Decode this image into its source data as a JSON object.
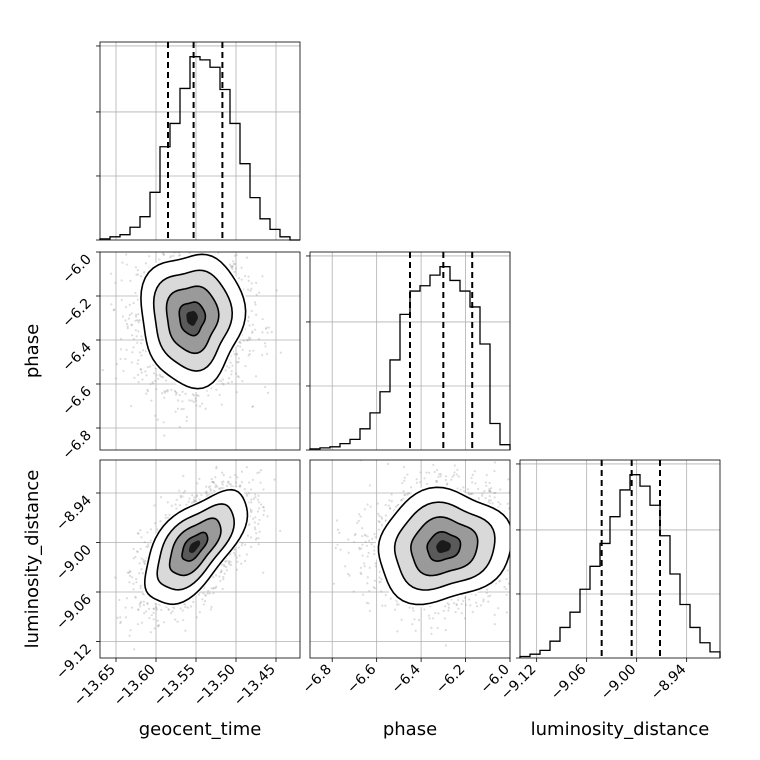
{
  "chart_data": {
    "type": "corner",
    "parameters": [
      "geocent_time",
      "phase",
      "luminosity_distance"
    ],
    "axes": {
      "geocent_time": {
        "label": "geocent_time",
        "range": [
          -13.67,
          -13.42
        ],
        "ticks": [
          -13.65,
          -13.6,
          -13.55,
          -13.5,
          -13.45
        ],
        "tick_labels": [
          "−13.65",
          "−13.60",
          "−13.55",
          "−13.50",
          "−13.45"
        ]
      },
      "phase": {
        "label": "phase",
        "range": [
          -6.9,
          -6.0
        ],
        "ticks": [
          -6.8,
          -6.6,
          -6.4,
          -6.2,
          -6.0
        ],
        "tick_labels": [
          "−6.8",
          "−6.6",
          "−6.4",
          "−6.2",
          "−6.0"
        ]
      },
      "luminosity_distance": {
        "label": "luminosity_distance",
        "range": [
          -9.14,
          -8.9
        ],
        "ticks": [
          -9.12,
          -9.06,
          -9.0,
          -8.94
        ],
        "tick_labels": [
          "−9.12",
          "−9.06",
          "−9.00",
          "−8.94"
        ]
      }
    },
    "marginals": [
      {
        "param": "geocent_time",
        "quantiles": [
          -13.585,
          -13.553,
          -13.517
        ],
        "bin_edges": [
          -13.67,
          -13.6575,
          -13.645,
          -13.6325,
          -13.62,
          -13.6075,
          -13.595,
          -13.5825,
          -13.57,
          -13.5575,
          -13.545,
          -13.5325,
          -13.52,
          -13.5075,
          -13.495,
          -13.4825,
          -13.47,
          -13.4575,
          -13.445,
          -13.4325,
          -13.42
        ],
        "counts": [
          1,
          3,
          5,
          12,
          22,
          45,
          88,
          110,
          143,
          173,
          170,
          163,
          142,
          110,
          72,
          40,
          20,
          10,
          3,
          0
        ]
      },
      {
        "param": "phase",
        "quantiles": [
          -6.45,
          -6.3,
          -6.17
        ],
        "bin_edges": [
          -6.9,
          -6.855,
          -6.81,
          -6.765,
          -6.72,
          -6.675,
          -6.63,
          -6.585,
          -6.54,
          -6.495,
          -6.45,
          -6.405,
          -6.36,
          -6.315,
          -6.27,
          -6.225,
          -6.18,
          -6.135,
          -6.09,
          -6.045,
          -6.0
        ],
        "counts": [
          1,
          2,
          3,
          6,
          10,
          20,
          35,
          55,
          85,
          128,
          150,
          155,
          165,
          173,
          160,
          150,
          135,
          100,
          25,
          5
        ]
      },
      {
        "param": "luminosity_distance",
        "quantiles": [
          -9.042,
          -9.006,
          -8.972
        ],
        "bin_edges": [
          -9.14,
          -9.128,
          -9.116,
          -9.104,
          -9.092,
          -9.08,
          -9.068,
          -9.056,
          -9.044,
          -9.032,
          -9.02,
          -9.008,
          -8.996,
          -8.984,
          -8.972,
          -8.96,
          -8.948,
          -8.936,
          -8.924,
          -8.912,
          -8.9
        ],
        "counts": [
          2,
          5,
          10,
          22,
          40,
          60,
          90,
          120,
          150,
          185,
          220,
          240,
          225,
          200,
          160,
          110,
          70,
          40,
          20,
          8
        ]
      }
    ],
    "pairs": [
      {
        "x": "geocent_time",
        "y": "phase",
        "center": [
          -13.555,
          -6.3
        ],
        "sigma": [
          0.032,
          0.15
        ],
        "correlation": 0.0
      },
      {
        "x": "geocent_time",
        "y": "luminosity_distance",
        "center": [
          -13.552,
          -9.005
        ],
        "sigma": [
          0.032,
          0.034
        ],
        "correlation": 0.6
      },
      {
        "x": "phase",
        "y": "luminosity_distance",
        "center": [
          -6.3,
          -9.005
        ],
        "sigma": [
          0.15,
          0.034
        ],
        "correlation": 0.1
      }
    ],
    "contour_levels_sigma": [
      0.5,
      1.0,
      1.5,
      2.0
    ],
    "grid": true,
    "legend": "none"
  }
}
